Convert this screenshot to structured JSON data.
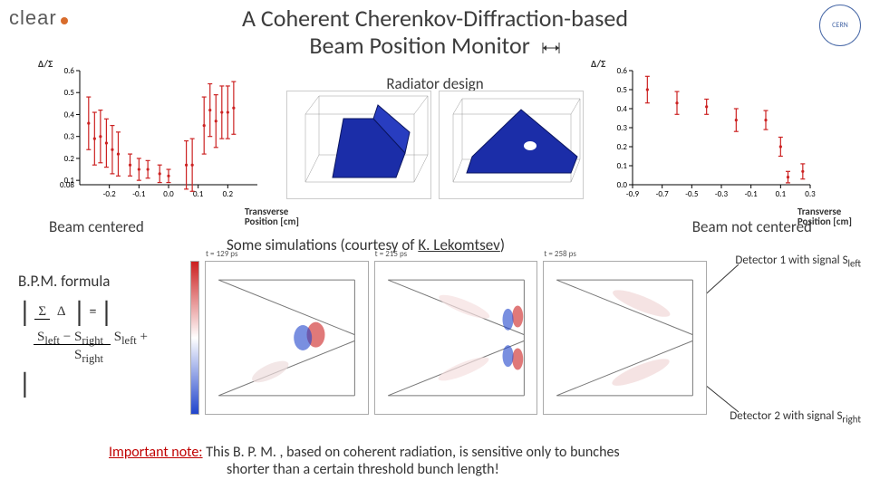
{
  "logo_left": "clear",
  "logo_right": "CERN",
  "title_line1": "A Coherent Cherenkov-Diffraction-based",
  "title_line2": "Beam Position Monitor",
  "radiator_label": "Radiator design",
  "beam_centered": "Beam centered",
  "beam_not_centered": "Beam not centered",
  "sims_label_pre": "Some simulations (courtesy of ",
  "sims_label_name": "K. Lekomtsev",
  "sims_label_post": ")",
  "detector1": {
    "label": "Detector 1 with signal S",
    "sub": "left"
  },
  "detector2": {
    "label": "Detector 2 with signal S",
    "sub": "right"
  },
  "bpm_formula_label": "B.P.M. formula",
  "formula": {
    "left_num": "Σ",
    "left_den": "Δ",
    "right_num_l": "S",
    "right_num_l_sub": "left",
    "right_num_op": " − ",
    "right_num_r": "S",
    "right_num_r_sub": "right",
    "right_den_l": "S",
    "right_den_l_sub": "left",
    "right_den_op": " + ",
    "right_den_r": "S",
    "right_den_r_sub": "right"
  },
  "important_prefix": "Important note:",
  "important_body1": " This B. P. M. , based on coherent radiation, is sensitive only to bunches",
  "important_body2": "shorter than a certain threshold bunch length!",
  "chart_left": {
    "type": "errorbar-scatter",
    "ylabel": "Δ/Σ",
    "xlabel": "Transverse\nPosition [cm]",
    "xlim": [
      -0.3,
      0.3
    ],
    "xticks": [
      -0.2,
      -0.1,
      0.0,
      0.1,
      0.2
    ],
    "ylim": [
      0.08,
      0.6
    ],
    "yticks": [
      0.1,
      0.2,
      0.3,
      0.4,
      0.5,
      0.6
    ],
    "ylabel_at_bottom": "0.08",
    "marker_color": "#cc2222",
    "error_color": "#cc2222",
    "font_size": 10,
    "points": [
      {
        "x": -0.27,
        "y": 0.36,
        "err": 0.12
      },
      {
        "x": -0.25,
        "y": 0.29,
        "err": 0.12
      },
      {
        "x": -0.23,
        "y": 0.3,
        "err": 0.12
      },
      {
        "x": -0.21,
        "y": 0.27,
        "err": 0.11
      },
      {
        "x": -0.19,
        "y": 0.24,
        "err": 0.11
      },
      {
        "x": -0.17,
        "y": 0.22,
        "err": 0.1
      },
      {
        "x": -0.13,
        "y": 0.17,
        "err": 0.05
      },
      {
        "x": -0.1,
        "y": 0.15,
        "err": 0.05
      },
      {
        "x": -0.07,
        "y": 0.15,
        "err": 0.04
      },
      {
        "x": -0.03,
        "y": 0.13,
        "err": 0.04
      },
      {
        "x": 0.0,
        "y": 0.12,
        "err": 0.03
      },
      {
        "x": 0.06,
        "y": 0.17,
        "err": 0.11
      },
      {
        "x": 0.08,
        "y": 0.17,
        "err": 0.12
      },
      {
        "x": 0.12,
        "y": 0.35,
        "err": 0.13
      },
      {
        "x": 0.14,
        "y": 0.42,
        "err": 0.12
      },
      {
        "x": 0.16,
        "y": 0.37,
        "err": 0.12
      },
      {
        "x": 0.18,
        "y": 0.41,
        "err": 0.12
      },
      {
        "x": 0.2,
        "y": 0.41,
        "err": 0.12
      },
      {
        "x": 0.22,
        "y": 0.43,
        "err": 0.12
      }
    ]
  },
  "chart_right": {
    "type": "errorbar-scatter",
    "ylabel": "Δ/Σ",
    "xlabel": "Transverse\nPosition [cm]",
    "xlim": [
      -0.9,
      0.3
    ],
    "xticks": [
      -0.9,
      -0.7,
      -0.5,
      -0.3,
      -0.1,
      0.1,
      0.3
    ],
    "ylim": [
      0.0,
      0.6
    ],
    "yticks": [
      0.0,
      0.1,
      0.2,
      0.3,
      0.4,
      0.5,
      0.6
    ],
    "marker_color": "#cc2222",
    "error_color": "#cc2222",
    "font_size": 10,
    "points": [
      {
        "x": -0.8,
        "y": 0.5,
        "err": 0.07
      },
      {
        "x": -0.6,
        "y": 0.43,
        "err": 0.06
      },
      {
        "x": -0.4,
        "y": 0.41,
        "err": 0.04
      },
      {
        "x": -0.2,
        "y": 0.34,
        "err": 0.06
      },
      {
        "x": 0.0,
        "y": 0.34,
        "err": 0.05
      },
      {
        "x": 0.1,
        "y": 0.2,
        "err": 0.05
      },
      {
        "x": 0.15,
        "y": 0.04,
        "err": 0.03
      },
      {
        "x": 0.25,
        "y": 0.07,
        "err": 0.04
      }
    ]
  },
  "radiator": {
    "wireframe_color": "#888888",
    "prism_fill": "#1b2da8",
    "prism_stroke": "#0a1560",
    "background": "#ffffff"
  },
  "sim_panels": {
    "type": "field-map",
    "colormap": {
      "min_color": "#2044cc",
      "mid_color": "#ffffff",
      "max_color": "#cc2020"
    },
    "panel_border": "#999999",
    "diag_line_color": "#666666",
    "times_ps": [
      129,
      215,
      258
    ],
    "time_label_prefix": "t = ",
    "time_label_suffix": " ps"
  }
}
